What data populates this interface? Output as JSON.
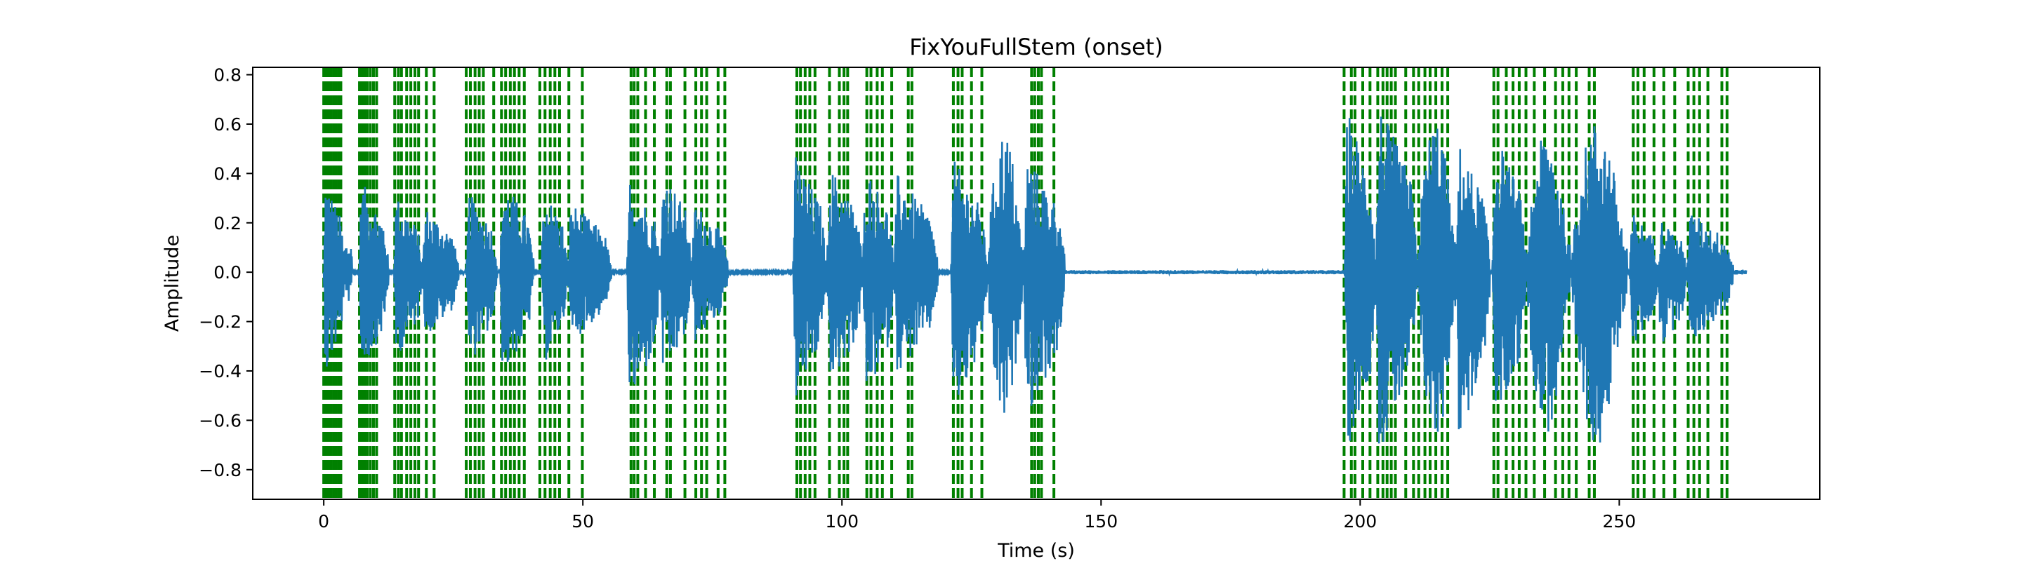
{
  "chart_data": {
    "type": "line",
    "title": "FixYouFullStem (onset)",
    "xlabel": "Time (s)",
    "ylabel": "Amplitude",
    "xlim": [
      -13.7,
      288.7
    ],
    "ylim": [
      -0.92,
      0.83
    ],
    "xticks": [
      0,
      50,
      100,
      150,
      200,
      250
    ],
    "xtick_labels": [
      "0",
      "50",
      "100",
      "150",
      "200",
      "250"
    ],
    "yticks": [
      -0.8,
      -0.6,
      -0.4,
      -0.2,
      0.0,
      0.2,
      0.4,
      0.6,
      0.8
    ],
    "ytick_labels": [
      "−0.8",
      "−0.6",
      "−0.4",
      "−0.2",
      "0.0",
      "0.2",
      "0.4",
      "0.6",
      "0.8"
    ],
    "grid": false,
    "legend": "none",
    "colors": {
      "waveform": "#1f77b4",
      "onset": "#008000"
    },
    "series": [
      {
        "kind": "waveform-envelope",
        "segments": [
          {
            "start": 0.0,
            "end": 4.0,
            "peak_pos": 0.4,
            "peak_neg": -0.45,
            "shape": "decay"
          },
          {
            "start": 4.0,
            "end": 5.5,
            "peak_pos": 0.12,
            "peak_neg": -0.12,
            "shape": "flat"
          },
          {
            "start": 6.8,
            "end": 12.5,
            "peak_pos": 0.39,
            "peak_neg": -0.43,
            "shape": "decay"
          },
          {
            "start": 13.5,
            "end": 19.0,
            "peak_pos": 0.33,
            "peak_neg": -0.37,
            "shape": "decay"
          },
          {
            "start": 19.0,
            "end": 26.0,
            "peak_pos": 0.28,
            "peak_neg": -0.28,
            "shape": "decay"
          },
          {
            "start": 27.5,
            "end": 33.5,
            "peak_pos": 0.34,
            "peak_neg": -0.4,
            "shape": "decay"
          },
          {
            "start": 34.0,
            "end": 40.5,
            "peak_pos": 0.4,
            "peak_neg": -0.45,
            "shape": "decay"
          },
          {
            "start": 42.0,
            "end": 47.0,
            "peak_pos": 0.36,
            "peak_neg": -0.4,
            "shape": "decay"
          },
          {
            "start": 47.0,
            "end": 55.5,
            "peak_pos": 0.3,
            "peak_neg": -0.3,
            "shape": "decay"
          },
          {
            "start": 58.5,
            "end": 65.0,
            "peak_pos": 0.4,
            "peak_neg": -0.58,
            "shape": "decay"
          },
          {
            "start": 65.0,
            "end": 71.0,
            "peak_pos": 0.45,
            "peak_neg": -0.46,
            "shape": "decay"
          },
          {
            "start": 71.0,
            "end": 78.0,
            "peak_pos": 0.3,
            "peak_neg": -0.3,
            "shape": "decay"
          },
          {
            "start": 90.5,
            "end": 97.0,
            "peak_pos": 0.5,
            "peak_neg": -0.55,
            "shape": "decay"
          },
          {
            "start": 97.0,
            "end": 104.0,
            "peak_pos": 0.46,
            "peak_neg": -0.5,
            "shape": "decay"
          },
          {
            "start": 104.0,
            "end": 110.0,
            "peak_pos": 0.46,
            "peak_neg": -0.55,
            "shape": "decay"
          },
          {
            "start": 110.0,
            "end": 118.5,
            "peak_pos": 0.42,
            "peak_neg": -0.44,
            "shape": "decay"
          },
          {
            "start": 121.0,
            "end": 128.0,
            "peak_pos": 0.48,
            "peak_neg": -0.6,
            "shape": "decay"
          },
          {
            "start": 128.0,
            "end": 135.0,
            "peak_pos": 0.58,
            "peak_neg": -0.62,
            "shape": "swell"
          },
          {
            "start": 135.0,
            "end": 143.0,
            "peak_pos": 0.5,
            "peak_neg": -0.62,
            "shape": "decay"
          },
          {
            "start": 143.0,
            "end": 197.0,
            "peak_pos": 0.008,
            "peak_neg": -0.008,
            "shape": "flat"
          },
          {
            "start": 197.0,
            "end": 203.0,
            "peak_pos": 0.7,
            "peak_neg": -0.76,
            "shape": "decay"
          },
          {
            "start": 203.0,
            "end": 211.0,
            "peak_pos": 0.72,
            "peak_neg": -0.78,
            "shape": "decay"
          },
          {
            "start": 211.0,
            "end": 218.5,
            "peak_pos": 0.63,
            "peak_neg": -0.7,
            "shape": "swell"
          },
          {
            "start": 218.5,
            "end": 225.0,
            "peak_pos": 0.55,
            "peak_neg": -0.72,
            "shape": "decay"
          },
          {
            "start": 225.5,
            "end": 232.0,
            "peak_pos": 0.6,
            "peak_neg": -0.65,
            "shape": "decay"
          },
          {
            "start": 232.0,
            "end": 240.5,
            "peak_pos": 0.58,
            "peak_neg": -0.66,
            "shape": "swell"
          },
          {
            "start": 240.5,
            "end": 251.5,
            "peak_pos": 0.62,
            "peak_neg": -0.7,
            "shape": "swell"
          },
          {
            "start": 252.0,
            "end": 257.5,
            "peak_pos": 0.26,
            "peak_neg": -0.33,
            "shape": "decay"
          },
          {
            "start": 257.5,
            "end": 263.0,
            "peak_pos": 0.23,
            "peak_neg": -0.33,
            "shape": "decay"
          },
          {
            "start": 263.0,
            "end": 272.0,
            "peak_pos": 0.26,
            "peak_neg": -0.3,
            "shape": "decay"
          },
          {
            "start": 272.0,
            "end": 274.5,
            "peak_pos": 0.01,
            "peak_neg": -0.01,
            "shape": "flat"
          }
        ]
      },
      {
        "kind": "onset-lines",
        "onsets": [
          0.0,
          0.4,
          0.9,
          1.4,
          1.9,
          2.4,
          2.9,
          3.3,
          6.9,
          7.4,
          7.9,
          8.4,
          9.0,
          9.6,
          10.2,
          13.7,
          14.4,
          15.0,
          16.0,
          16.8,
          17.6,
          18.3,
          19.8,
          21.3,
          27.5,
          28.3,
          29.2,
          30.0,
          30.8,
          32.8,
          34.3,
          35.1,
          36.0,
          36.8,
          37.7,
          38.7,
          41.7,
          42.7,
          43.7,
          44.6,
          45.5,
          47.3,
          49.9,
          59.3,
          59.9,
          60.6,
          62.1,
          63.8,
          66.2,
          66.9,
          69.7,
          71.8,
          72.9,
          73.9,
          76.1,
          77.4,
          91.3,
          92.0,
          92.9,
          93.8,
          94.8,
          97.6,
          99.5,
          100.4,
          101.1,
          104.8,
          105.6,
          106.8,
          107.8,
          109.6,
          112.8,
          113.5,
          121.5,
          122.4,
          123.2,
          125.0,
          127.0,
          136.6,
          137.2,
          137.9,
          138.5,
          140.9,
          196.9,
          198.3,
          199.0,
          200.5,
          201.9,
          203.4,
          204.4,
          205.2,
          206.0,
          206.8,
          208.8,
          210.3,
          211.3,
          212.5,
          213.5,
          214.6,
          215.8,
          216.9,
          225.8,
          226.6,
          228.2,
          229.5,
          230.7,
          232.0,
          233.6,
          235.6,
          237.7,
          239.1,
          240.3,
          241.7,
          244.2,
          245.2,
          252.7,
          253.6,
          254.8,
          256.7,
          258.6,
          260.7,
          263.3,
          264.4,
          265.5,
          267.1,
          269.8,
          270.8
        ]
      }
    ]
  }
}
